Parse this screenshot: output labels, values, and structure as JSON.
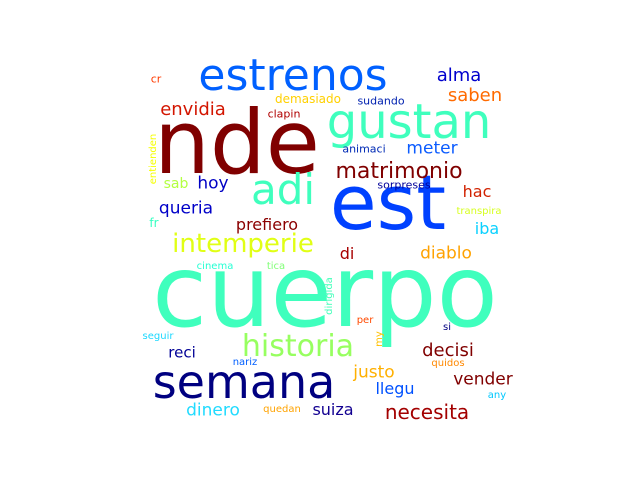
{
  "words": [
    {
      "text": "cuerpo",
      "color": "#3fffbd"
    },
    {
      "text": "nde",
      "color": "#800000"
    },
    {
      "text": "est",
      "color": "#0041ff"
    },
    {
      "text": "semana",
      "color": "#000080"
    },
    {
      "text": "gustan",
      "color": "#3fffbd"
    },
    {
      "text": "estrenos",
      "color": "#0060ff"
    },
    {
      "text": "adi",
      "color": "#3fffbd"
    },
    {
      "text": "historia",
      "color": "#97ff60"
    },
    {
      "text": "intemperie",
      "color": "#e1ff15"
    },
    {
      "text": "matrimonio",
      "color": "#800000"
    },
    {
      "text": "necesita",
      "color": "#a30000"
    },
    {
      "text": "envidia",
      "color": "#d31500"
    },
    {
      "text": "alma",
      "color": "#0000cd"
    },
    {
      "text": "saben",
      "color": "#ff6a00"
    },
    {
      "text": "meter",
      "color": "#0c5cff"
    },
    {
      "text": "hoy",
      "color": "#0000c4"
    },
    {
      "text": "sab",
      "color": "#b4ff42"
    },
    {
      "text": "queria",
      "color": "#0000c8"
    },
    {
      "text": "prefiero",
      "color": "#8b0000"
    },
    {
      "text": "hac",
      "color": "#d12200"
    },
    {
      "text": "iba",
      "color": "#0ad1ff"
    },
    {
      "text": "di",
      "color": "#a80000"
    },
    {
      "text": "diablo",
      "color": "#ffa200"
    },
    {
      "text": "decisi",
      "color": "#800000"
    },
    {
      "text": "justo",
      "color": "#ffb000"
    },
    {
      "text": "vender",
      "color": "#800000"
    },
    {
      "text": "llegu",
      "color": "#0051ff"
    },
    {
      "text": "reci",
      "color": "#000096"
    },
    {
      "text": "dinero",
      "color": "#21dbff"
    },
    {
      "text": "suiza",
      "color": "#120091"
    },
    {
      "text": "demasiado",
      "color": "#ffd000"
    },
    {
      "text": "sudando",
      "color": "#0021b0"
    },
    {
      "text": "clapin",
      "color": "#b00000"
    },
    {
      "text": "animaci",
      "color": "#002ab5"
    },
    {
      "text": "sorpreses",
      "color": "#000099"
    },
    {
      "text": "cr",
      "color": "#ff3a00"
    },
    {
      "text": "fr",
      "color": "#36ffc1"
    },
    {
      "text": "entienden",
      "color": "#f5ff00"
    },
    {
      "text": "transpira",
      "color": "#d7ff20"
    },
    {
      "text": "cinema",
      "color": "#24ffd3"
    },
    {
      "text": "tica",
      "color": "#80ff77"
    },
    {
      "text": "dirigida",
      "color": "#40ffb8"
    },
    {
      "text": "per",
      "color": "#ff4a00"
    },
    {
      "text": "my",
      "color": "#ffc000"
    },
    {
      "text": "si",
      "color": "#000080"
    },
    {
      "text": "seguir",
      "color": "#1cd8ff"
    },
    {
      "text": "nariz",
      "color": "#005fff"
    },
    {
      "text": "quidos",
      "color": "#ff8800"
    },
    {
      "text": "quedan",
      "color": "#ffa300"
    },
    {
      "text": "any",
      "color": "#00c8ff"
    }
  ]
}
